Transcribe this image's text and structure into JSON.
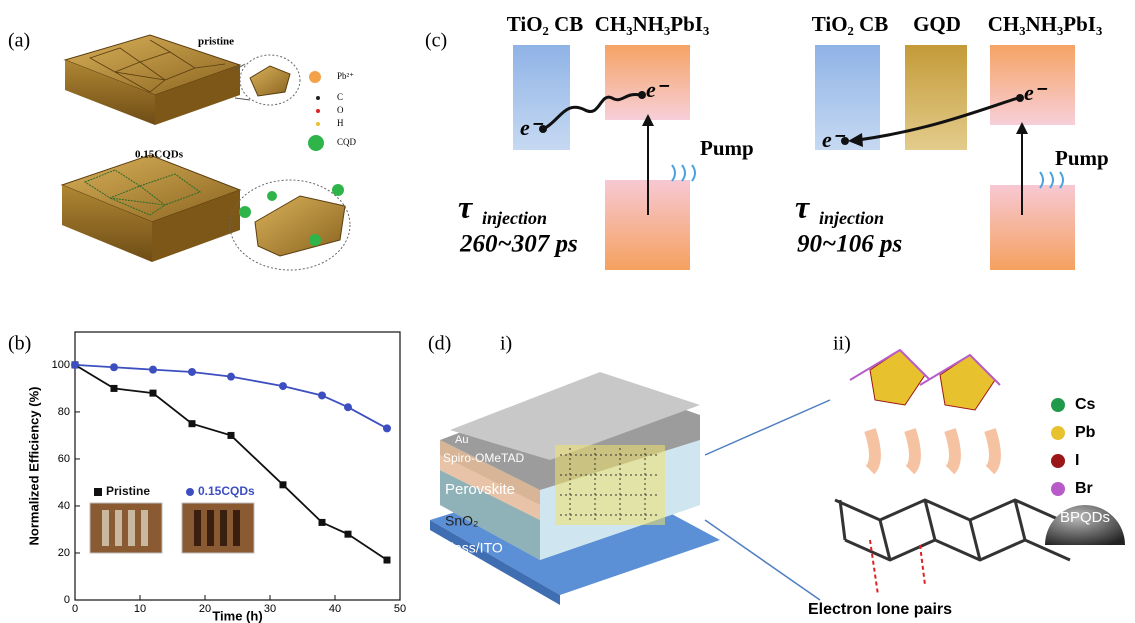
{
  "panel_a": {
    "label": "(a)",
    "top_label": "pristine",
    "legend": [
      "Pb²⁺",
      "C",
      "O",
      "H",
      "CQD"
    ],
    "bottom_label": "0.15CQDs"
  },
  "panel_c": {
    "label": "(c)",
    "left": {
      "tio2": "TiO₂ CB",
      "perovskite": "CH₃NH₃PbI₃",
      "electron_1": "e⁻",
      "electron_2": "e⁻",
      "pump": "Pump",
      "tau": "τ",
      "tau_sub": "injection",
      "time": "260~307 ps"
    },
    "right": {
      "tio2": "TiO₂ CB",
      "gqd": "GQD",
      "perovskite": "CH₃NH₃PbI₃",
      "electron_1": "e⁻",
      "electron_2": "e⁻",
      "pump": "Pump",
      "tau": "τ",
      "tau_sub": "injection",
      "time": "90~106 ps"
    }
  },
  "panel_d": {
    "label": "(d)",
    "sub_i": "i)",
    "sub_ii": "ii)",
    "layers": [
      "Au",
      "Spiro-OMeTAD",
      "Perovskite",
      "SnO₂",
      "Glass/ITO"
    ],
    "legend": [
      {
        "name": "Cs",
        "color": "#1f9a4a"
      },
      {
        "name": "Pb",
        "color": "#e8c22e"
      },
      {
        "name": "I",
        "color": "#9b1616"
      },
      {
        "name": "Br",
        "color": "#b85bc9"
      }
    ],
    "dot_label": "BPQDs",
    "caption": "Electron lone pairs"
  },
  "chart_data": {
    "type": "line",
    "panel_label": "(b)",
    "x_label": "Time (h)",
    "y_label": "Normalized Efficiency  (%)",
    "x": [
      0,
      6,
      12,
      18,
      24,
      32,
      38,
      42,
      48
    ],
    "series": [
      {
        "name": "Pristine",
        "color": "#111111",
        "marker": "square",
        "values": [
          100,
          90,
          88,
          75,
          70,
          49,
          33,
          28,
          17
        ]
      },
      {
        "name": "0.15CQDs",
        "color": "#3d4fc0",
        "marker": "circle",
        "values": [
          100,
          99,
          98,
          97,
          95,
          91,
          87,
          82,
          73
        ]
      }
    ],
    "xlim": [
      0,
      50
    ],
    "xticks": [
      0,
      10,
      20,
      30,
      40,
      50
    ],
    "ylim": [
      0,
      114
    ],
    "yticks": [
      0,
      20,
      40,
      60,
      80,
      100
    ],
    "grid": false
  }
}
